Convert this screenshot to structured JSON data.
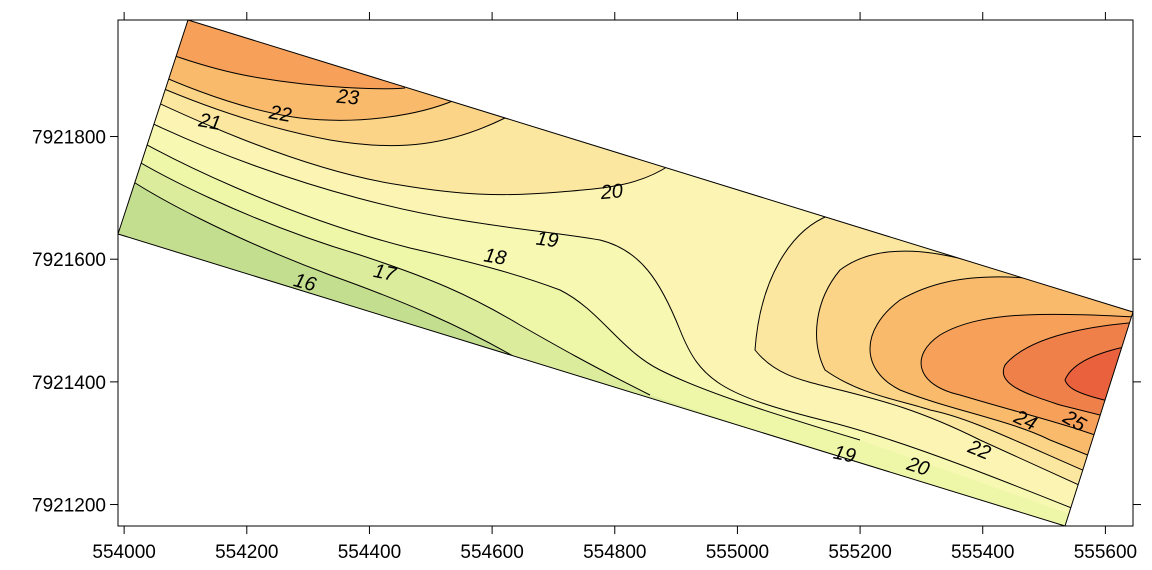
{
  "chart_data": {
    "type": "contour",
    "title": "",
    "xlabel": "",
    "ylabel": "",
    "xlim": [
      553990,
      555645
    ],
    "ylim": [
      7921165,
      7921990
    ],
    "x_ticks": [
      554000,
      554200,
      554400,
      554600,
      554800,
      555000,
      555200,
      555400,
      555600
    ],
    "x_tick_labels": [
      "554000",
      "554200",
      "554400",
      "554600",
      "554800",
      "555000",
      "555200",
      "555400",
      "555600"
    ],
    "y_ticks": [
      7921200,
      7921400,
      7921600,
      7921800
    ],
    "y_tick_labels": [
      "7921200",
      "7921400",
      "7921600",
      "7921800"
    ],
    "grid": false,
    "contour_levels": [
      16,
      17,
      18,
      19,
      20,
      21,
      22,
      23,
      24,
      25
    ],
    "contour_labels": [
      {
        "text": "21",
        "x": 554140,
        "y": 7921825,
        "angle": 10
      },
      {
        "text": "22",
        "x": 554255,
        "y": 7921838,
        "angle": 10
      },
      {
        "text": "23",
        "x": 554365,
        "y": 7921865,
        "angle": 5
      },
      {
        "text": "20",
        "x": 554795,
        "y": 7921711,
        "angle": -5
      },
      {
        "text": "19",
        "x": 554690,
        "y": 7921633,
        "angle": 8
      },
      {
        "text": "18",
        "x": 554605,
        "y": 7921605,
        "angle": 10
      },
      {
        "text": "17",
        "x": 554425,
        "y": 7921579,
        "angle": 12
      },
      {
        "text": "16",
        "x": 554295,
        "y": 7921563,
        "angle": 15
      },
      {
        "text": "19",
        "x": 555175,
        "y": 7921283,
        "angle": 12
      },
      {
        "text": "20",
        "x": 555295,
        "y": 7921263,
        "angle": 18
      },
      {
        "text": "22",
        "x": 555395,
        "y": 7921290,
        "angle": 22
      },
      {
        "text": "24",
        "x": 555470,
        "y": 7921338,
        "angle": 25
      },
      {
        "text": "25",
        "x": 555550,
        "y": 7921337,
        "angle": 30
      }
    ],
    "colormap": [
      "#c4de8f",
      "#dcec9d",
      "#eef6a8",
      "#f7f8b2",
      "#fcf4b2",
      "#fce7a0",
      "#fbd487",
      "#f9bb6b",
      "#f6a05a",
      "#f0804a",
      "#e9613d"
    ]
  }
}
